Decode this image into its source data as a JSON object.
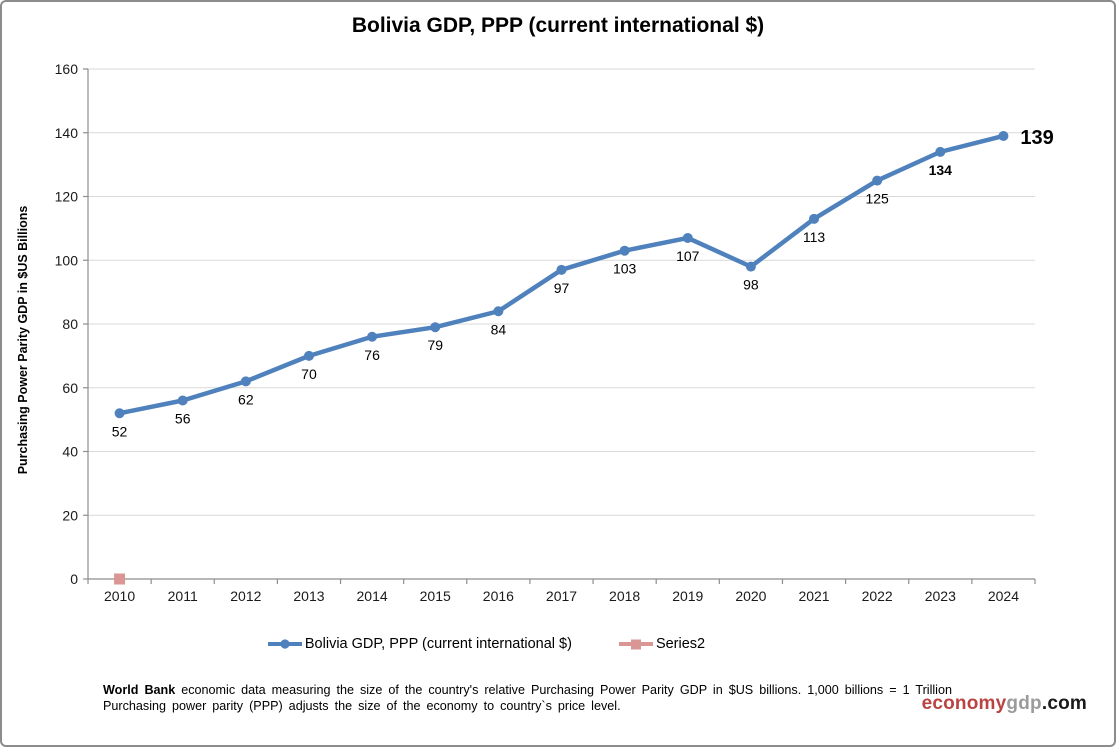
{
  "title": "Bolivia GDP, PPP (current international $)",
  "chart_data": {
    "type": "line",
    "categories": [
      "2010",
      "2011",
      "2012",
      "2013",
      "2014",
      "2015",
      "2016",
      "2017",
      "2018",
      "2019",
      "2020",
      "2021",
      "2022",
      "2023",
      "2024"
    ],
    "series": [
      {
        "name": "Bolivia GDP, PPP (current international $)",
        "color": "#4F81BD",
        "marker": "circle",
        "values": [
          52,
          56,
          62,
          70,
          76,
          79,
          84,
          97,
          103,
          107,
          98,
          113,
          125,
          134,
          139
        ]
      },
      {
        "name": "Series2",
        "color": "#D99694",
        "marker": "square",
        "values": [
          0
        ]
      }
    ],
    "xlabel": "",
    "ylabel": "Purchasing Power Parity GDP in $US Billions",
    "ylim": [
      0,
      160
    ],
    "ytick_step": 20,
    "grid": true,
    "legend_position": "bottom",
    "data_labels": true,
    "bold_label_indices": [
      13,
      14
    ],
    "colors": {
      "gridline": "#D9D9D9",
      "axis": "#8E8E8E",
      "tick_label": "#1a1a1a",
      "data_label": "#000000"
    }
  },
  "footer": {
    "line1_bold": "World Bank",
    "line1_rest": " economic data  measuring the size of the country's relative  Purchasing Power Parity GDP in $US billions. 1,000 billions = 1 Trillion",
    "line2": "Purchasing power parity (PPP) adjusts the size of the economy to country`s price level."
  },
  "logo": {
    "part1": "economy",
    "part2": "gdp",
    "part3": ".com",
    "part1_color": "#B94442",
    "part2_color": "#9B9B9B",
    "part3_color": "#1A1A1A"
  }
}
